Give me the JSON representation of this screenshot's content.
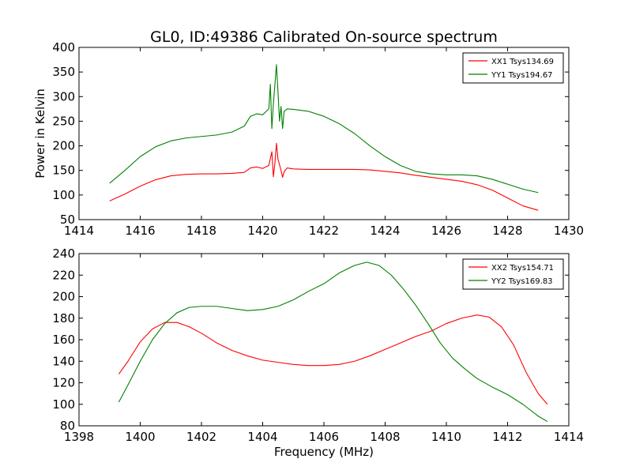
{
  "chart_data": [
    {
      "type": "line",
      "title": "GL0, ID:49386 Calibrated On-source spectrum",
      "xlabel": "",
      "ylabel": "Power in Kelvin",
      "xlim": [
        1414,
        1430
      ],
      "ylim": [
        50,
        400
      ],
      "xticks": [
        1414,
        1416,
        1418,
        1420,
        1422,
        1424,
        1426,
        1428,
        1430
      ],
      "yticks": [
        50,
        100,
        150,
        200,
        250,
        300,
        350,
        400
      ],
      "grid": false,
      "legend_position": "top-right",
      "series": [
        {
          "name": "XX1 Tsys134.69",
          "color": "#ff0000",
          "points": [
            [
              1415.0,
              88
            ],
            [
              1415.5,
              102
            ],
            [
              1416.0,
              118
            ],
            [
              1416.5,
              131
            ],
            [
              1417.0,
              139
            ],
            [
              1417.5,
              142
            ],
            [
              1418.0,
              143
            ],
            [
              1418.5,
              143
            ],
            [
              1419.0,
              144
            ],
            [
              1419.4,
              146
            ],
            [
              1419.6,
              155
            ],
            [
              1419.8,
              157
            ],
            [
              1420.0,
              154
            ],
            [
              1420.2,
              160
            ],
            [
              1420.3,
              188
            ],
            [
              1420.35,
              137
            ],
            [
              1420.4,
              165
            ],
            [
              1420.45,
              205
            ],
            [
              1420.5,
              173
            ],
            [
              1420.6,
              150
            ],
            [
              1420.65,
              136
            ],
            [
              1420.7,
              147
            ],
            [
              1420.8,
              155
            ],
            [
              1421.0,
              153
            ],
            [
              1421.5,
              152
            ],
            [
              1422.0,
              152
            ],
            [
              1422.5,
              152
            ],
            [
              1423.0,
              152
            ],
            [
              1423.5,
              151
            ],
            [
              1424.0,
              148
            ],
            [
              1424.5,
              145
            ],
            [
              1425.0,
              140
            ],
            [
              1425.5,
              136
            ],
            [
              1426.0,
              132
            ],
            [
              1426.5,
              128
            ],
            [
              1427.0,
              121
            ],
            [
              1427.5,
              110
            ],
            [
              1428.0,
              94
            ],
            [
              1428.5,
              78
            ],
            [
              1429.0,
              69
            ]
          ]
        },
        {
          "name": "YY1 Tsys194.67",
          "color": "#008000",
          "points": [
            [
              1415.0,
              124
            ],
            [
              1415.5,
              150
            ],
            [
              1416.0,
              178
            ],
            [
              1416.5,
              198
            ],
            [
              1417.0,
              210
            ],
            [
              1417.5,
              216
            ],
            [
              1418.0,
              219
            ],
            [
              1418.5,
              222
            ],
            [
              1419.0,
              228
            ],
            [
              1419.4,
              240
            ],
            [
              1419.6,
              260
            ],
            [
              1419.8,
              265
            ],
            [
              1420.0,
              263
            ],
            [
              1420.2,
              275
            ],
            [
              1420.25,
              325
            ],
            [
              1420.3,
              235
            ],
            [
              1420.35,
              285
            ],
            [
              1420.45,
              365
            ],
            [
              1420.5,
              310
            ],
            [
              1420.55,
              250
            ],
            [
              1420.6,
              280
            ],
            [
              1420.65,
              235
            ],
            [
              1420.7,
              270
            ],
            [
              1420.8,
              275
            ],
            [
              1421.0,
              274
            ],
            [
              1421.5,
              270
            ],
            [
              1422.0,
              260
            ],
            [
              1422.5,
              245
            ],
            [
              1423.0,
              225
            ],
            [
              1423.5,
              200
            ],
            [
              1424.0,
              178
            ],
            [
              1424.5,
              160
            ],
            [
              1425.0,
              148
            ],
            [
              1425.5,
              143
            ],
            [
              1426.0,
              141
            ],
            [
              1426.5,
              141
            ],
            [
              1427.0,
              139
            ],
            [
              1427.5,
              132
            ],
            [
              1428.0,
              122
            ],
            [
              1428.5,
              112
            ],
            [
              1429.0,
              105
            ]
          ]
        }
      ]
    },
    {
      "type": "line",
      "title": "",
      "xlabel": "Frequency (MHz)",
      "ylabel": "",
      "xlim": [
        1398,
        1414
      ],
      "ylim": [
        80,
        240
      ],
      "xticks": [
        1398,
        1400,
        1402,
        1404,
        1406,
        1408,
        1410,
        1412,
        1414
      ],
      "yticks": [
        80,
        100,
        120,
        140,
        160,
        180,
        200,
        220,
        240
      ],
      "grid": false,
      "legend_position": "top-right",
      "series": [
        {
          "name": "XX2 Tsys154.71",
          "color": "#ff0000",
          "points": [
            [
              1399.3,
              128
            ],
            [
              1399.6,
              140
            ],
            [
              1400.0,
              158
            ],
            [
              1400.4,
              170
            ],
            [
              1400.8,
              176
            ],
            [
              1401.2,
              176
            ],
            [
              1401.6,
              172
            ],
            [
              1402.0,
              166
            ],
            [
              1402.5,
              157
            ],
            [
              1403.0,
              150
            ],
            [
              1403.5,
              145
            ],
            [
              1404.0,
              141
            ],
            [
              1404.5,
              139
            ],
            [
              1405.0,
              137
            ],
            [
              1405.5,
              136
            ],
            [
              1406.0,
              136
            ],
            [
              1406.5,
              137
            ],
            [
              1407.0,
              140
            ],
            [
              1407.5,
              145
            ],
            [
              1408.0,
              151
            ],
            [
              1408.5,
              157
            ],
            [
              1409.0,
              163
            ],
            [
              1409.5,
              168
            ],
            [
              1410.0,
              175
            ],
            [
              1410.5,
              180
            ],
            [
              1411.0,
              183
            ],
            [
              1411.4,
              181
            ],
            [
              1411.8,
              172
            ],
            [
              1412.2,
              155
            ],
            [
              1412.6,
              130
            ],
            [
              1413.0,
              110
            ],
            [
              1413.3,
              100
            ]
          ]
        },
        {
          "name": "YY2 Tsys169.83",
          "color": "#008000",
          "points": [
            [
              1399.3,
              102
            ],
            [
              1399.6,
              118
            ],
            [
              1400.0,
              140
            ],
            [
              1400.4,
              160
            ],
            [
              1400.8,
              175
            ],
            [
              1401.2,
              185
            ],
            [
              1401.6,
              190
            ],
            [
              1402.0,
              191
            ],
            [
              1402.5,
              191
            ],
            [
              1403.0,
              189
            ],
            [
              1403.5,
              187
            ],
            [
              1404.0,
              188
            ],
            [
              1404.5,
              191
            ],
            [
              1405.0,
              197
            ],
            [
              1405.5,
              205
            ],
            [
              1406.0,
              212
            ],
            [
              1406.5,
              222
            ],
            [
              1407.0,
              229
            ],
            [
              1407.4,
              232
            ],
            [
              1407.8,
              229
            ],
            [
              1408.2,
              220
            ],
            [
              1408.6,
              207
            ],
            [
              1409.0,
              192
            ],
            [
              1409.4,
              175
            ],
            [
              1409.8,
              157
            ],
            [
              1410.2,
              143
            ],
            [
              1410.6,
              133
            ],
            [
              1411.0,
              124
            ],
            [
              1411.5,
              116
            ],
            [
              1412.0,
              109
            ],
            [
              1412.5,
              100
            ],
            [
              1413.0,
              89
            ],
            [
              1413.3,
              84
            ]
          ]
        }
      ]
    }
  ]
}
